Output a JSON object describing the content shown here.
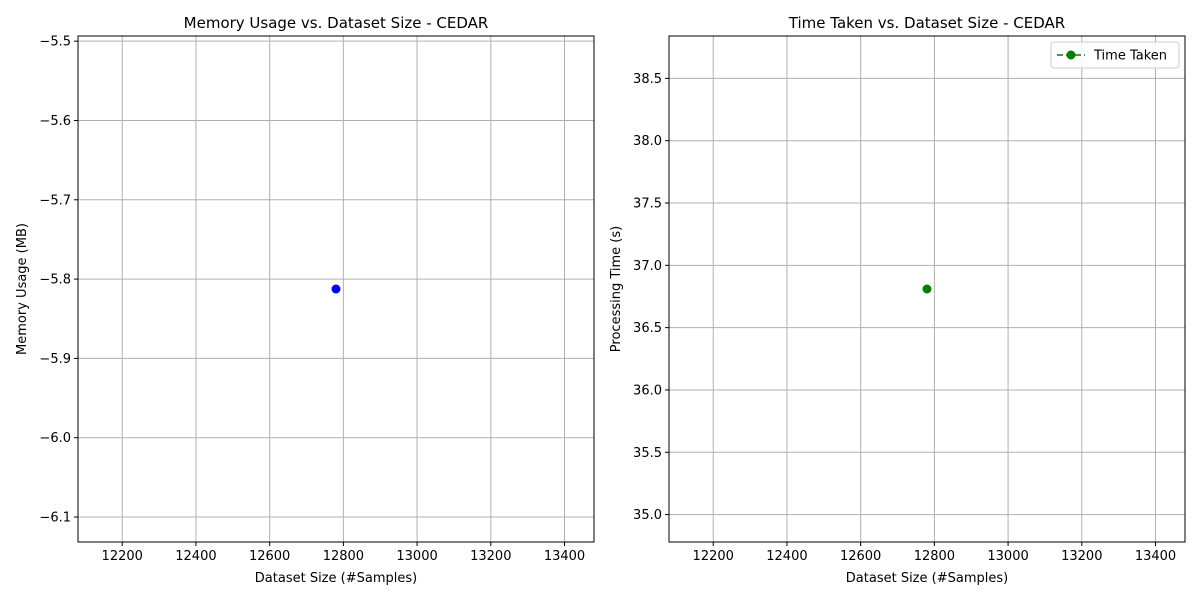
{
  "chart_data": [
    {
      "type": "scatter",
      "title": "Memory Usage vs. Dataset Size - CEDAR",
      "xlabel": "Dataset Size (#Samples)",
      "ylabel": "Memory Usage (MB)",
      "xlim": [
        12080,
        13480
      ],
      "ylim": [
        -6.1315,
        -5.4935
      ],
      "xticks": [
        12200,
        12400,
        12600,
        12800,
        13000,
        13200,
        13400
      ],
      "yticks": [
        -6.1,
        -6.0,
        -5.9,
        -5.8,
        -5.7,
        -5.6,
        -5.5
      ],
      "xtick_labels": [
        "12200",
        "12400",
        "12600",
        "12800",
        "13000",
        "13200",
        "13400"
      ],
      "ytick_labels": [
        "−6.1",
        "−6.0",
        "−5.9",
        "−5.8",
        "−5.7",
        "−5.6",
        "−5.5"
      ],
      "grid": true,
      "series": [
        {
          "x": [
            12780
          ],
          "y": [
            -5.8125
          ],
          "color": "#0000ff",
          "marker": "circle",
          "line": "none"
        }
      ],
      "legend": null
    },
    {
      "type": "line",
      "title": "Time Taken vs. Dataset Size - CEDAR",
      "xlabel": "Dataset Size (#Samples)",
      "ylabel": "Processing Time (s)",
      "xlim": [
        12080,
        13480
      ],
      "ylim": [
        34.78,
        38.84
      ],
      "xticks": [
        12200,
        12400,
        12600,
        12800,
        13000,
        13200,
        13400
      ],
      "yticks": [
        35.0,
        35.5,
        36.0,
        36.5,
        37.0,
        37.5,
        38.0,
        38.5
      ],
      "xtick_labels": [
        "12200",
        "12400",
        "12600",
        "12800",
        "13000",
        "13200",
        "13400"
      ],
      "ytick_labels": [
        "35.0",
        "35.5",
        "36.0",
        "36.5",
        "37.0",
        "37.5",
        "38.0",
        "38.5"
      ],
      "grid": true,
      "series": [
        {
          "name": "Time Taken",
          "x": [
            12780
          ],
          "y": [
            36.81
          ],
          "color": "#008000",
          "marker": "circle",
          "line": "dashed"
        }
      ],
      "legend": "top-right"
    }
  ]
}
